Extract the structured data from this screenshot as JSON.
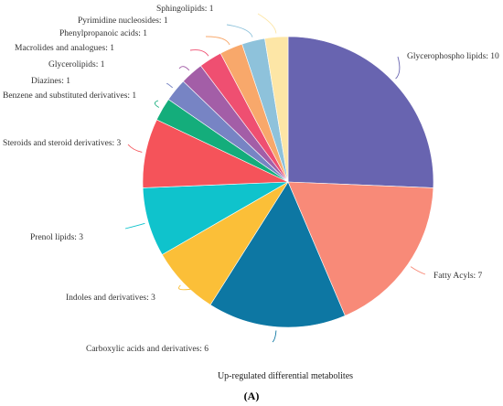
{
  "chart_data": {
    "type": "pie",
    "title": "",
    "caption": "Up-regulated differential metabolites",
    "panel_label": "(A)",
    "slices": [
      {
        "label": "Glycerophospho lipids",
        "value": 10,
        "color": "#6864b0"
      },
      {
        "label": "Fatty Acyls",
        "value": 7,
        "color": "#f88a78"
      },
      {
        "label": "Carboxylic acids and derivatives",
        "value": 6,
        "color": "#0d77a3"
      },
      {
        "label": "Indoles and derivatives",
        "value": 3,
        "color": "#fbbf38"
      },
      {
        "label": "Prenol lipids",
        "value": 3,
        "color": "#0fc3cc"
      },
      {
        "label": "Steroids and steroid derivatives",
        "value": 3,
        "color": "#f5535a"
      },
      {
        "label": "Benzene and substituted derivatives",
        "value": 1,
        "color": "#14ad7b"
      },
      {
        "label": "Diazines",
        "value": 1,
        "color": "#7784c4"
      },
      {
        "label": "Glycerolipids",
        "value": 1,
        "color": "#a35ea7"
      },
      {
        "label": "Macrolides and analogues",
        "value": 1,
        "color": "#ef4f71"
      },
      {
        "label": "Phenylpropanoic acids",
        "value": 1,
        "color": "#f8a86b"
      },
      {
        "label": "Pyrimidine nucleosides",
        "value": 1,
        "color": "#8ec2db"
      },
      {
        "label": "Sphingolipids",
        "value": 1,
        "color": "#fde6a6"
      }
    ]
  }
}
